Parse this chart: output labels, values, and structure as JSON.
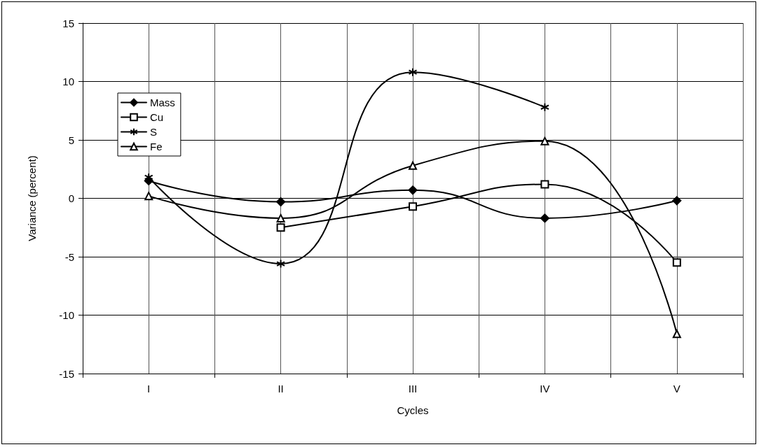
{
  "chart_data": {
    "type": "line",
    "xlabel": "Cycles",
    "ylabel": "Variance (percent)",
    "categories": [
      "I",
      "II",
      "III",
      "IV",
      "V"
    ],
    "series": [
      {
        "name": "Mass",
        "color": "#000000",
        "marker": "diamond",
        "values": [
          1.5,
          -0.3,
          0.7,
          -1.7,
          -0.2
        ]
      },
      {
        "name": "Cu",
        "color": "#000000",
        "marker": "square",
        "values": [
          null,
          -2.5,
          -0.7,
          1.2,
          -5.5
        ]
      },
      {
        "name": "S",
        "color": "#000000",
        "marker": "cross",
        "values": [
          1.8,
          -5.6,
          10.8,
          7.8,
          null
        ]
      },
      {
        "name": "Fe",
        "color": "#000000",
        "marker": "triangle",
        "values": [
          0.2,
          -1.7,
          2.8,
          4.9,
          -11.6
        ]
      }
    ],
    "ylim": [
      -15,
      15
    ],
    "yticks": [
      -15,
      -10,
      -5,
      0,
      5,
      10,
      15
    ],
    "grid": true,
    "legend": "top left",
    "line_style": "solid"
  }
}
